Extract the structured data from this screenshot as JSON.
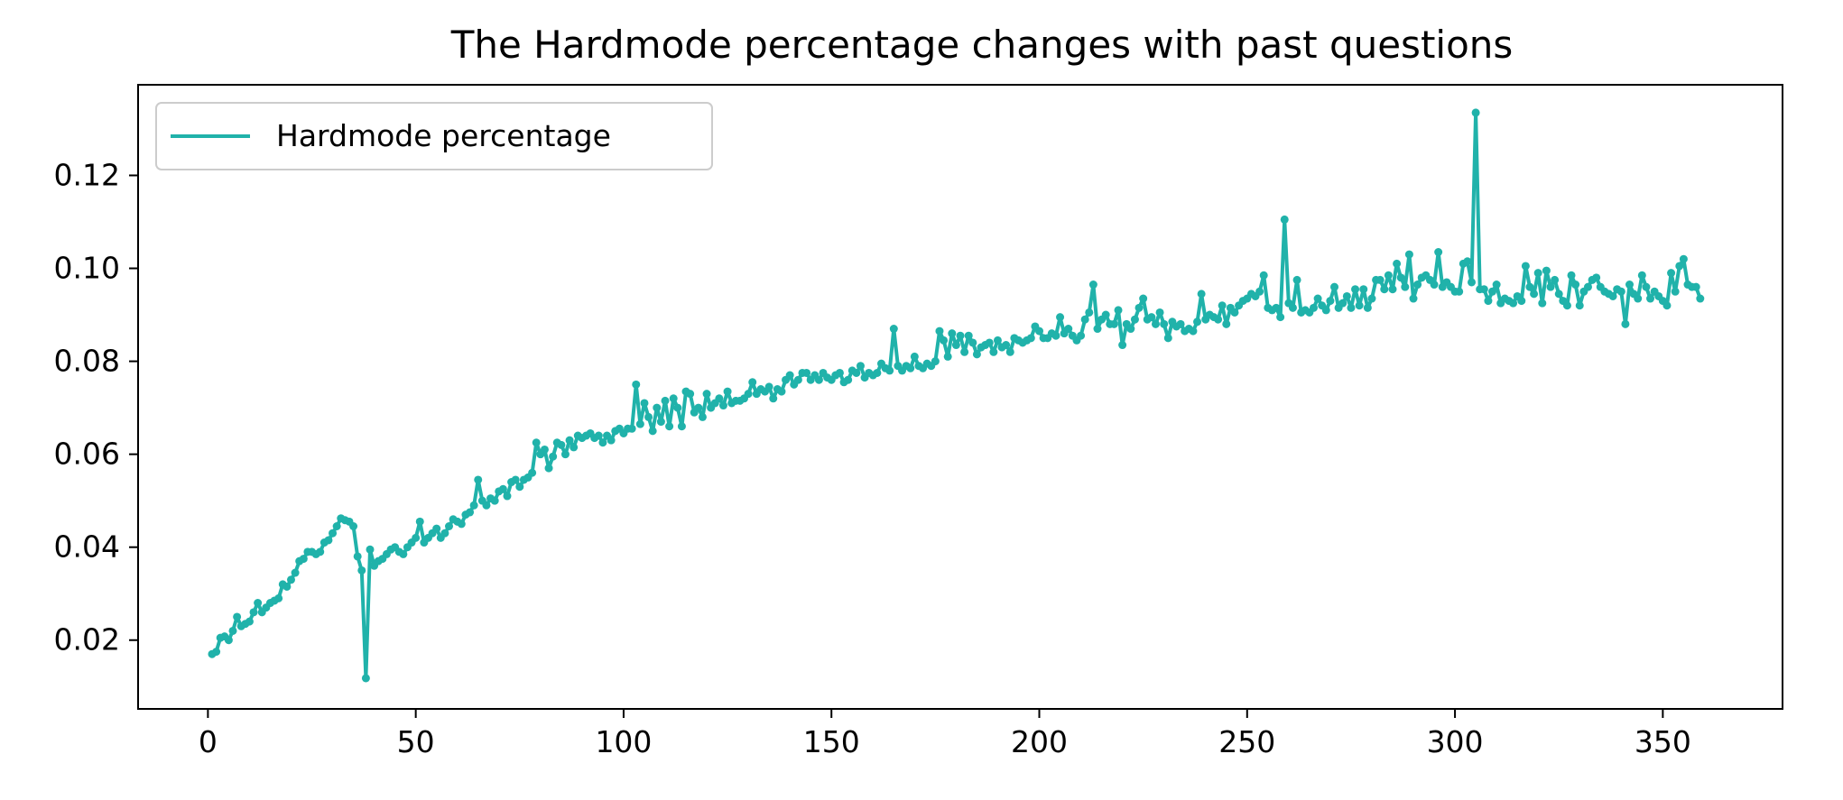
{
  "chart_data": {
    "type": "line",
    "title": "The Hardmode percentage changes with past questions",
    "xlabel": "",
    "ylabel": "",
    "xlim": [
      -16.8,
      378.8
    ],
    "ylim": [
      0.0052,
      0.1395
    ],
    "xticks": [
      0,
      50,
      100,
      150,
      200,
      250,
      300,
      350
    ],
    "xtick_labels": [
      "0",
      "50",
      "100",
      "150",
      "200",
      "250",
      "300",
      "350"
    ],
    "yticks": [
      0.02,
      0.04,
      0.06,
      0.08,
      0.1,
      0.12
    ],
    "ytick_labels": [
      "0.02",
      "0.04",
      "0.06",
      "0.08",
      "0.10",
      "0.12"
    ],
    "grid": false,
    "legend_position": "top-left",
    "series": [
      {
        "name": "Hardmode percentage",
        "color": "#20b2aa",
        "marker": "circle",
        "x_start": 1,
        "x_step": 1,
        "values": [
          0.017,
          0.0175,
          0.0205,
          0.0208,
          0.02,
          0.022,
          0.025,
          0.023,
          0.0235,
          0.024,
          0.026,
          0.028,
          0.026,
          0.027,
          0.028,
          0.0285,
          0.029,
          0.032,
          0.0315,
          0.033,
          0.0345,
          0.037,
          0.0375,
          0.039,
          0.039,
          0.0385,
          0.039,
          0.041,
          0.0415,
          0.043,
          0.0445,
          0.0462,
          0.0458,
          0.0455,
          0.0445,
          0.038,
          0.035,
          0.0118,
          0.0395,
          0.036,
          0.037,
          0.0375,
          0.0385,
          0.0395,
          0.04,
          0.039,
          0.0385,
          0.04,
          0.041,
          0.042,
          0.0455,
          0.041,
          0.042,
          0.043,
          0.044,
          0.042,
          0.043,
          0.0445,
          0.046,
          0.0455,
          0.045,
          0.047,
          0.0475,
          0.049,
          0.0545,
          0.05,
          0.049,
          0.0505,
          0.05,
          0.052,
          0.0525,
          0.051,
          0.054,
          0.0545,
          0.053,
          0.0545,
          0.055,
          0.056,
          0.0625,
          0.06,
          0.061,
          0.057,
          0.0595,
          0.0625,
          0.062,
          0.06,
          0.063,
          0.0615,
          0.064,
          0.0635,
          0.064,
          0.0645,
          0.0635,
          0.064,
          0.0625,
          0.064,
          0.063,
          0.065,
          0.0655,
          0.0645,
          0.0655,
          0.0655,
          0.075,
          0.0665,
          0.071,
          0.068,
          0.065,
          0.07,
          0.067,
          0.0715,
          0.066,
          0.072,
          0.07,
          0.066,
          0.0735,
          0.073,
          0.069,
          0.07,
          0.068,
          0.073,
          0.07,
          0.071,
          0.072,
          0.0705,
          0.0735,
          0.071,
          0.0715,
          0.0715,
          0.072,
          0.073,
          0.0755,
          0.073,
          0.074,
          0.0735,
          0.0745,
          0.072,
          0.074,
          0.0735,
          0.076,
          0.077,
          0.075,
          0.076,
          0.0775,
          0.0775,
          0.076,
          0.077,
          0.076,
          0.0775,
          0.0765,
          0.076,
          0.077,
          0.0775,
          0.0755,
          0.076,
          0.078,
          0.0775,
          0.079,
          0.0765,
          0.0775,
          0.077,
          0.0775,
          0.0795,
          0.0785,
          0.078,
          0.087,
          0.079,
          0.078,
          0.079,
          0.0785,
          0.081,
          0.079,
          0.0785,
          0.0795,
          0.079,
          0.08,
          0.0865,
          0.0845,
          0.081,
          0.086,
          0.0835,
          0.0855,
          0.082,
          0.0855,
          0.084,
          0.0815,
          0.083,
          0.0835,
          0.084,
          0.082,
          0.0845,
          0.083,
          0.0835,
          0.082,
          0.085,
          0.0845,
          0.084,
          0.0845,
          0.085,
          0.0875,
          0.0865,
          0.085,
          0.085,
          0.086,
          0.0855,
          0.0895,
          0.086,
          0.087,
          0.0855,
          0.0845,
          0.0855,
          0.089,
          0.0905,
          0.0965,
          0.087,
          0.089,
          0.09,
          0.088,
          0.088,
          0.091,
          0.0835,
          0.088,
          0.087,
          0.089,
          0.0915,
          0.0935,
          0.089,
          0.0895,
          0.088,
          0.0905,
          0.088,
          0.085,
          0.0885,
          0.0875,
          0.088,
          0.0865,
          0.087,
          0.0865,
          0.0885,
          0.0945,
          0.089,
          0.09,
          0.0895,
          0.089,
          0.092,
          0.088,
          0.0915,
          0.0905,
          0.092,
          0.093,
          0.0935,
          0.0945,
          0.094,
          0.095,
          0.0985,
          0.0915,
          0.091,
          0.0915,
          0.0895,
          0.1105,
          0.0925,
          0.0915,
          0.0975,
          0.0905,
          0.091,
          0.0905,
          0.0915,
          0.0935,
          0.092,
          0.091,
          0.093,
          0.096,
          0.0915,
          0.0925,
          0.094,
          0.0915,
          0.0955,
          0.092,
          0.0955,
          0.0915,
          0.0935,
          0.0975,
          0.0975,
          0.0955,
          0.0985,
          0.0955,
          0.101,
          0.098,
          0.096,
          0.103,
          0.0935,
          0.0965,
          0.098,
          0.0985,
          0.0975,
          0.0965,
          0.1035,
          0.096,
          0.097,
          0.096,
          0.095,
          0.095,
          0.101,
          0.1015,
          0.097,
          0.1335,
          0.0955,
          0.0955,
          0.093,
          0.095,
          0.0965,
          0.0925,
          0.0935,
          0.093,
          0.0925,
          0.094,
          0.093,
          0.1005,
          0.096,
          0.0945,
          0.099,
          0.0925,
          0.0995,
          0.096,
          0.0975,
          0.0945,
          0.093,
          0.092,
          0.0985,
          0.0965,
          0.092,
          0.095,
          0.096,
          0.0975,
          0.098,
          0.096,
          0.095,
          0.0945,
          0.094,
          0.0955,
          0.095,
          0.088,
          0.0965,
          0.0945,
          0.0935,
          0.0985,
          0.096,
          0.0935,
          0.095,
          0.094,
          0.093,
          0.092,
          0.099,
          0.095,
          0.1005,
          0.102,
          0.0965,
          0.096,
          0.096,
          0.0935
        ]
      }
    ]
  }
}
